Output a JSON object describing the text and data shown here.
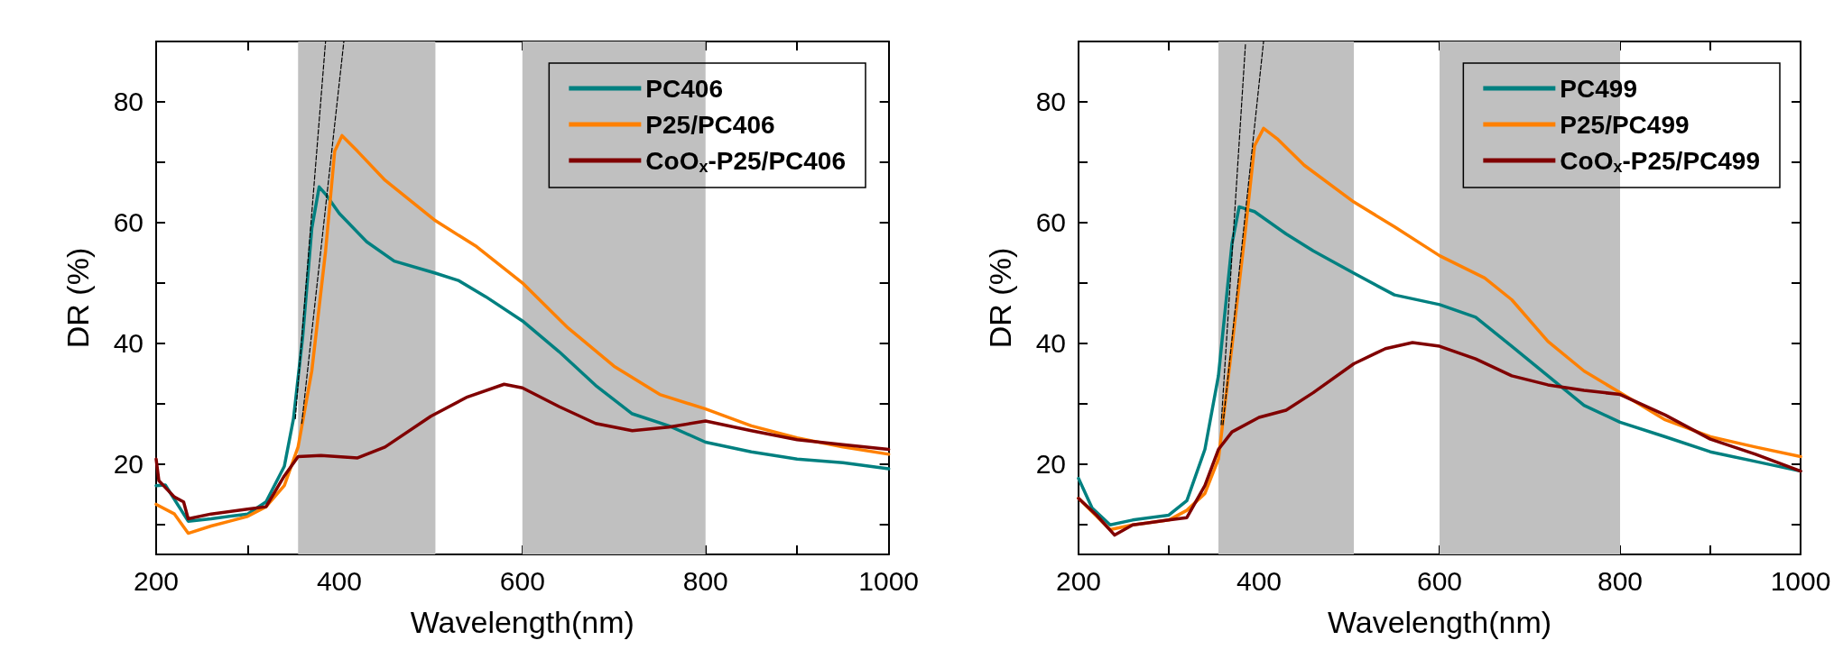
{
  "chart_data": [
    {
      "type": "line",
      "xlabel": "Wavelength(nm)",
      "ylabel": "DR (%)",
      "xlim": [
        200,
        1000
      ],
      "ylim": [
        5,
        90
      ],
      "xticks": [
        200,
        {
          "value": 300,
          "label": null
        },
        400,
        {
          "value": 500,
          "label": null
        },
        600,
        {
          "value": 700,
          "label": null
        },
        800,
        {
          "value": 900,
          "label": null
        },
        1000
      ],
      "yticks": [
        {
          "value": 10,
          "label": null
        },
        20,
        {
          "value": 30,
          "label": null
        },
        40,
        {
          "value": 50,
          "label": null
        },
        60,
        {
          "value": 70,
          "label": null
        },
        80
      ],
      "legend": "top right",
      "bands": [
        {
          "axis": "x",
          "from": 355,
          "to": 505,
          "color": "#c0c0c0"
        },
        {
          "axis": "x",
          "from": 600,
          "to": 800,
          "color": "#c0c0c0"
        }
      ],
      "series": [
        {
          "name": "PC406",
          "color": "#008080",
          "x": [
            200,
            210,
            235,
            260,
            300,
            320,
            340,
            350,
            360,
            370,
            378,
            385,
            400,
            430,
            460,
            505,
            530,
            560,
            600,
            640,
            680,
            720,
            760,
            800,
            850,
            900,
            950,
            1000
          ],
          "values": [
            16.4,
            16.5,
            10.5,
            10.9,
            11.7,
            13.7,
            19.6,
            27.5,
            41,
            59,
            65.9,
            64.7,
            61.5,
            56.8,
            53.6,
            51.6,
            50.4,
            47.7,
            43.7,
            38.6,
            33,
            28.3,
            26.3,
            23.6,
            22,
            20.8,
            20.2,
            19.2
          ]
        },
        {
          "name": "P25/PC406",
          "color": "#ff8000",
          "x": [
            200,
            220,
            235,
            260,
            300,
            320,
            340,
            355,
            370,
            385,
            395,
            403,
            420,
            450,
            505,
            550,
            600,
            650,
            700,
            750,
            800,
            850,
            900,
            950,
            1000
          ],
          "values": [
            13.3,
            11.7,
            8.5,
            9.7,
            11.3,
            12.9,
            16.4,
            22.8,
            35.4,
            55.2,
            71.8,
            74.4,
            71.8,
            67,
            60.3,
            56,
            50,
            42.5,
            36.2,
            31.5,
            29.1,
            26.3,
            24.3,
            22.8,
            21.6
          ]
        },
        {
          "name": "CoO$_{x}$-P25/PC406",
          "color": "#800000",
          "x": [
            200,
            203,
            220,
            230,
            235,
            260,
            300,
            320,
            340,
            355,
            380,
            420,
            450,
            500,
            540,
            580,
            600,
            640,
            680,
            720,
            760,
            800,
            850,
            900,
            950,
            1000
          ],
          "values": [
            20.8,
            17.2,
            14.5,
            13.7,
            10.9,
            11.7,
            12.5,
            12.9,
            18,
            21.2,
            21.4,
            21,
            22.8,
            27.9,
            31.1,
            33.2,
            32.6,
            29.5,
            26.7,
            25.5,
            26.1,
            27.1,
            25.5,
            24,
            23.2,
            22.4
          ]
        },
        {
          "type": "line",
          "color": "#000000",
          "line_style": "dashed",
          "x": [
            352,
            385
          ],
          "values": [
            27.5,
            90
          ]
        },
        {
          "type": "line",
          "color": "#000000",
          "line_style": "dashed",
          "x": [
            359,
            405
          ],
          "values": [
            26.7,
            90
          ]
        }
      ]
    },
    {
      "type": "line",
      "xlabel": "Wavelength(nm)",
      "ylabel": "DR (%)",
      "xlim": [
        200,
        1000
      ],
      "ylim": [
        5,
        90
      ],
      "xticks": [
        200,
        {
          "value": 300,
          "label": null
        },
        400,
        {
          "value": 500,
          "label": null
        },
        600,
        {
          "value": 700,
          "label": null
        },
        800,
        {
          "value": 900,
          "label": null
        },
        1000
      ],
      "yticks": [
        {
          "value": 10,
          "label": null
        },
        20,
        {
          "value": 30,
          "label": null
        },
        40,
        {
          "value": 50,
          "label": null
        },
        60,
        {
          "value": 70,
          "label": null
        },
        80
      ],
      "legend": "top right",
      "bands": [
        {
          "axis": "x",
          "from": 355,
          "to": 505,
          "color": "#c0c0c0"
        },
        {
          "axis": "x",
          "from": 600,
          "to": 800,
          "color": "#c0c0c0"
        }
      ],
      "series": [
        {
          "name": "PC499",
          "color": "#008080",
          "x": [
            200,
            215,
            235,
            260,
            300,
            320,
            340,
            355,
            370,
            378,
            395,
            430,
            460,
            505,
            550,
            600,
            640,
            680,
            720,
            760,
            800,
            850,
            900,
            950,
            1000
          ],
          "values": [
            17.6,
            12.7,
            9.9,
            10.7,
            11.5,
            13.9,
            22.4,
            34.6,
            56.5,
            62.6,
            61.8,
            58.1,
            55.3,
            51.6,
            48,
            46.4,
            44.3,
            39.5,
            34.6,
            29.7,
            26.9,
            24.5,
            22,
            20.4,
            18.8
          ]
        },
        {
          "name": "P25/PC499",
          "color": "#ff8000",
          "x": [
            200,
            235,
            260,
            300,
            320,
            340,
            355,
            370,
            385,
            395,
            405,
            420,
            450,
            505,
            550,
            600,
            650,
            680,
            720,
            760,
            800,
            850,
            900,
            950,
            1000
          ],
          "values": [
            14.3,
            9.1,
            9.9,
            10.7,
            12.3,
            15.1,
            20.8,
            39.5,
            58.9,
            72.7,
            75.6,
            73.9,
            69.5,
            63.4,
            59.3,
            54.5,
            50.8,
            47.2,
            40.3,
            35.4,
            31.8,
            27.3,
            24.5,
            22.8,
            21.2
          ]
        },
        {
          "name": "CoO$_{x}$-P25/PC499",
          "color": "#800000",
          "x": [
            200,
            220,
            240,
            260,
            300,
            320,
            340,
            355,
            370,
            400,
            430,
            460,
            505,
            540,
            570,
            600,
            640,
            680,
            720,
            760,
            800,
            850,
            900,
            950,
            1000
          ],
          "values": [
            14.3,
            11.5,
            8.2,
            9.9,
            10.7,
            11.1,
            16.4,
            22.4,
            25.3,
            27.7,
            28.9,
            31.8,
            36.6,
            39.1,
            40.1,
            39.5,
            37.4,
            34.6,
            33.1,
            32.2,
            31.5,
            28.1,
            24.1,
            21.6,
            18.8
          ]
        },
        {
          "type": "line",
          "color": "#000000",
          "line_style": "dashed",
          "x": [
            358,
            385
          ],
          "values": [
            26.5,
            89.7
          ]
        },
        {
          "type": "line",
          "color": "#000000",
          "line_style": "dashed",
          "x": [
            360,
            405
          ],
          "values": [
            26.5,
            90
          ]
        }
      ]
    }
  ]
}
